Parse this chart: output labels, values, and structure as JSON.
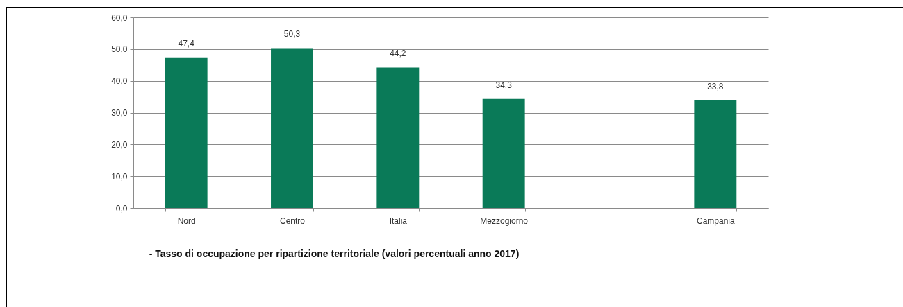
{
  "chart_data": {
    "type": "bar",
    "title": "- Tasso di occupazione per ripartizione territoriale (valori percentuali anno 2017)",
    "categories": [
      "Nord",
      "Centro",
      "Italia",
      "Mezzogiorno",
      null,
      "Campania"
    ],
    "values": [
      47.4,
      50.3,
      44.2,
      34.3,
      null,
      33.8
    ],
    "value_labels": [
      "47,4",
      "50,3",
      "44,2",
      "34,3",
      null,
      "33,8"
    ],
    "color": "#0a7a58",
    "ylim": [
      0,
      60
    ],
    "yticks": [
      {
        "value": 0,
        "label": "0,0"
      },
      {
        "value": 10,
        "label": "10,0"
      },
      {
        "value": 20,
        "label": "20,0"
      },
      {
        "value": 30,
        "label": "30,0"
      },
      {
        "value": 40,
        "label": "40,0"
      },
      {
        "value": 50,
        "label": "50,0"
      },
      {
        "value": 60,
        "label": "60,0"
      }
    ],
    "grid": "y"
  }
}
